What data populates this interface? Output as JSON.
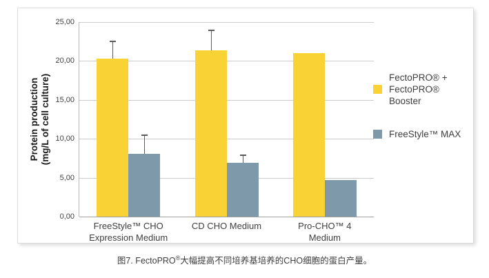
{
  "figure": {
    "caption": {
      "prefix": "图7. FectoPRO",
      "sup": "®",
      "text": "大幅提高不同培养基培养的CHO细胞的蛋白产量。"
    }
  },
  "chart_data": {
    "type": "bar",
    "title": "",
    "ylabel_lines": [
      "Protein production",
      "(mg/L of cell culture)"
    ],
    "xlabel": "",
    "ylim": [
      0,
      25
    ],
    "grid": true,
    "legend_position": "right",
    "yticks": [
      {
        "value": 0,
        "label": "0,00"
      },
      {
        "value": 5,
        "label": "5,00"
      },
      {
        "value": 10,
        "label": "10,00"
      },
      {
        "value": 15,
        "label": "15,00"
      },
      {
        "value": 20,
        "label": "20,00"
      },
      {
        "value": 25,
        "label": "25,00"
      }
    ],
    "categories": [
      [
        "FreeStyle™ CHO",
        "Expression Medium"
      ],
      [
        "CD CHO Medium"
      ],
      [
        "Pro-CHO™ 4",
        "Medium"
      ]
    ],
    "series": [
      {
        "name_lines": [
          "FectoPRO® +",
          "FectoPRO® Booster"
        ],
        "color": "#F9D236",
        "values": [
          20.3,
          21.4,
          21.0
        ],
        "errors_plus": [
          2.2,
          2.5,
          0
        ]
      },
      {
        "name_lines": [
          "FreeStyle™ MAX"
        ],
        "color": "#7E99A9",
        "values": [
          8.1,
          6.9,
          4.7
        ],
        "errors_plus": [
          2.4,
          1.0,
          0
        ]
      }
    ]
  },
  "colors": {
    "series1": "#F9D236",
    "series2": "#7E99A9",
    "gridline": "#cbcbcb",
    "axis_line": "#9e9e9e",
    "error_bar": "#595959",
    "text": "#3d3d3d",
    "panel_border": "#dcdcdc"
  }
}
